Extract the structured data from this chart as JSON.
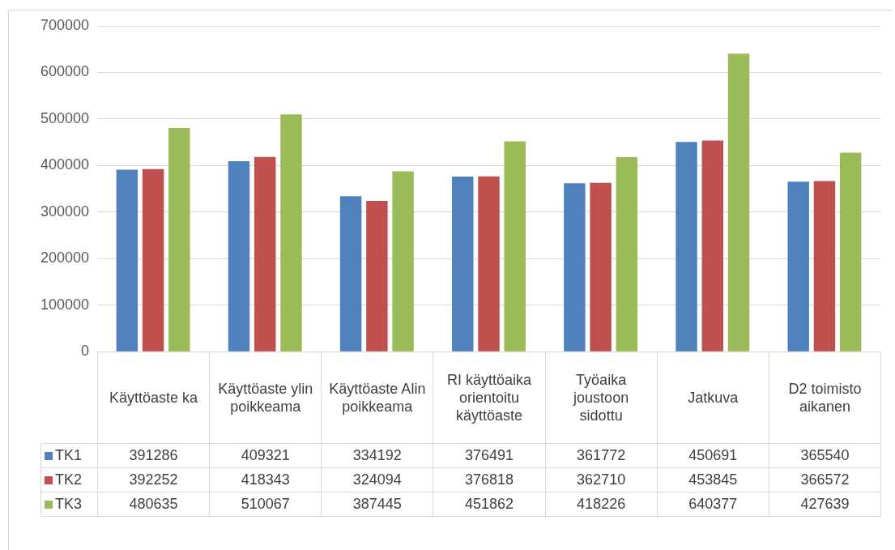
{
  "chart_data": {
    "type": "bar",
    "categories": [
      "Käyttöaste ka",
      "Käyttöaste ylin poikkeama",
      "Käyttöaste Alin poikkeama",
      "RI käyttöaika orientoitu käyttöaste",
      "Työaika joustoon sidottu",
      "Jatkuva",
      "D2 toimisto aikanen"
    ],
    "series": [
      {
        "name": "TK1",
        "color": "#4f81bd",
        "values": [
          391286,
          409321,
          334192,
          376491,
          361772,
          450691,
          365540
        ]
      },
      {
        "name": "TK2",
        "color": "#c0504d",
        "values": [
          392252,
          418343,
          324094,
          376818,
          362710,
          453845,
          366572
        ]
      },
      {
        "name": "TK3",
        "color": "#9bbb59",
        "values": [
          480635,
          510067,
          387445,
          451862,
          418226,
          640377,
          427639
        ]
      }
    ],
    "ylim": [
      0,
      700000
    ],
    "yticks": [
      0,
      100000,
      200000,
      300000,
      400000,
      500000,
      600000,
      700000
    ],
    "grid": "y",
    "legend": "bottom left",
    "data_labels": true
  }
}
